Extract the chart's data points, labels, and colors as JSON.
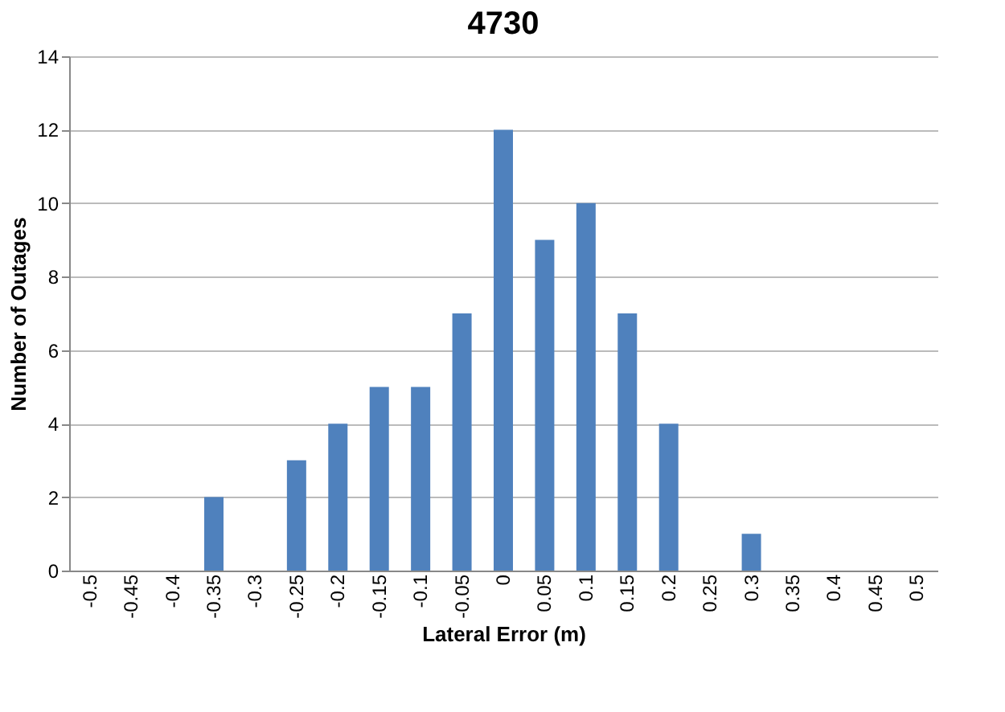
{
  "chart_data": {
    "type": "bar",
    "title": "4730",
    "xlabel": "Lateral Error (m)",
    "ylabel": "Number of Outages",
    "categories": [
      "-0.5",
      "-0.45",
      "-0.4",
      "-0.35",
      "-0.3",
      "-0.25",
      "-0.2",
      "-0.15",
      "-0.1",
      "-0.05",
      "0",
      "0.05",
      "0.1",
      "0.15",
      "0.2",
      "0.25",
      "0.3",
      "0.35",
      "0.4",
      "0.45",
      "0.5"
    ],
    "values": [
      0,
      0,
      0,
      2,
      0,
      3,
      4,
      5,
      5,
      7,
      12,
      9,
      10,
      7,
      4,
      0,
      1,
      0,
      0,
      0,
      0
    ],
    "color": "#4f81bd",
    "ylim": [
      0,
      14
    ],
    "yticks": [
      0,
      2,
      4,
      6,
      8,
      10,
      12,
      14
    ],
    "grid": "y"
  }
}
